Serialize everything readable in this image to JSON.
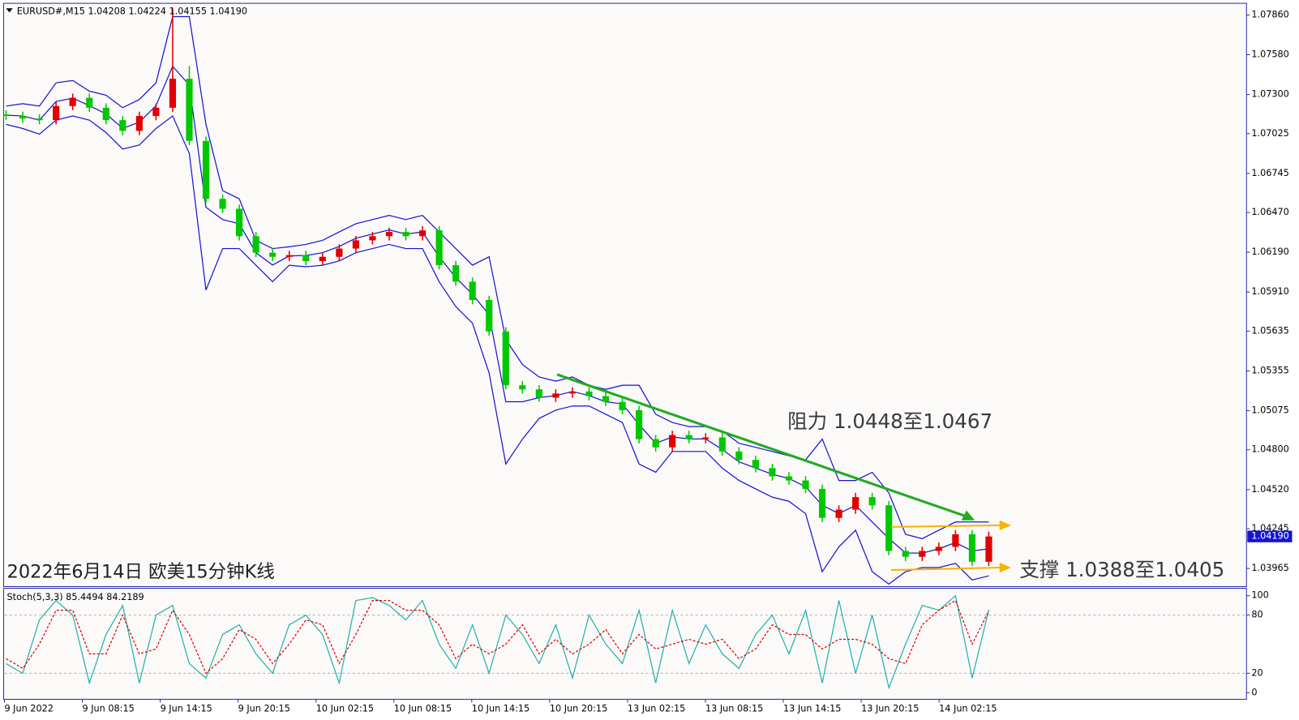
{
  "chart_data": [
    {
      "type": "candlestick",
      "title": "EURUSD#,M15  1.04208 1.04224 1.04155 1.04190",
      "annotations": [
        "阻力 1.0448至1.0467",
        "支撑 1.0388至1.0405",
        "2022年6月14日 欧美15分钟K线"
      ],
      "current_price": {
        "value": 1.0419,
        "label": "1.04190"
      },
      "time_labels": [
        "9 Jun 2022",
        "9 Jun 08:15",
        "9 Jun 14:15",
        "9 Jun 20:15",
        "10 Jun 02:15",
        "10 Jun 08:15",
        "10 Jun 14:15",
        "10 Jun 20:15",
        "13 Jun 02:15",
        "13 Jun 08:15",
        "13 Jun 14:15",
        "13 Jun 20:15",
        "14 Jun 02:15"
      ],
      "up_color": "#e00000",
      "down_color": "#00c800",
      "open": [
        1.0716,
        1.07149,
        1.07131,
        1.0712,
        1.07219,
        1.07277,
        1.07207,
        1.0712,
        1.07044,
        1.07149,
        1.07207,
        1.07411,
        1.06974,
        1.06566,
        1.06496,
        1.06303,
        1.06187,
        1.06158,
        1.0617,
        1.06128,
        1.06158,
        1.06216,
        1.06274,
        1.06303,
        1.06333,
        1.06303,
        1.06344,
        1.06099,
        1.05983,
        1.05854,
        1.05633,
        1.05254,
        1.05225,
        1.05167,
        1.05196,
        1.0521,
        1.05178,
        1.05137,
        1.05079,
        1.04875,
        1.04817,
        1.04904,
        1.04875,
        1.04887,
        1.04788,
        1.04729,
        1.04671,
        1.04613,
        1.04584,
        1.04525,
        1.04321,
        1.04379,
        1.04467,
        1.04409,
        1.04088,
        1.04047,
        1.04088,
        1.04117,
        1.04205,
        1.04012
      ],
      "high": [
        1.0719,
        1.07179,
        1.07161,
        1.07249,
        1.07307,
        1.07307,
        1.07237,
        1.0715,
        1.07179,
        1.07237,
        1.07907,
        1.075,
        1.07004,
        1.06596,
        1.06526,
        1.06333,
        1.06217,
        1.062,
        1.062,
        1.06188,
        1.06246,
        1.06304,
        1.06333,
        1.06363,
        1.06363,
        1.06374,
        1.06374,
        1.06129,
        1.06013,
        1.05884,
        1.05663,
        1.05284,
        1.05255,
        1.05226,
        1.0524,
        1.0524,
        1.05208,
        1.05167,
        1.05109,
        1.04905,
        1.04934,
        1.04934,
        1.04917,
        1.04917,
        1.04818,
        1.04759,
        1.04701,
        1.04643,
        1.04614,
        1.04555,
        1.04409,
        1.04497,
        1.04497,
        1.04439,
        1.04118,
        1.04118,
        1.04147,
        1.04235,
        1.04235,
        1.04224
      ],
      "low": [
        1.07119,
        1.07101,
        1.0709,
        1.0709,
        1.07189,
        1.07177,
        1.0709,
        1.07014,
        1.07014,
        1.07119,
        1.07177,
        1.06944,
        1.06536,
        1.06466,
        1.06273,
        1.06157,
        1.06128,
        1.06128,
        1.06098,
        1.06098,
        1.06128,
        1.06186,
        1.06244,
        1.06273,
        1.06273,
        1.06273,
        1.06069,
        1.05953,
        1.05824,
        1.05603,
        1.05224,
        1.05195,
        1.05137,
        1.05137,
        1.05166,
        1.05148,
        1.05107,
        1.05049,
        1.04845,
        1.04787,
        1.04787,
        1.04845,
        1.04845,
        1.04758,
        1.04699,
        1.04641,
        1.04583,
        1.04554,
        1.04495,
        1.04291,
        1.04291,
        1.04349,
        1.04379,
        1.04058,
        1.04017,
        1.04017,
        1.04058,
        1.04087,
        1.03982,
        1.03982
      ],
      "close": [
        1.07149,
        1.07131,
        1.0712,
        1.07219,
        1.07277,
        1.07207,
        1.0712,
        1.07044,
        1.07149,
        1.07207,
        1.07411,
        1.06974,
        1.06566,
        1.06496,
        1.06303,
        1.06187,
        1.06158,
        1.0617,
        1.06128,
        1.06158,
        1.06216,
        1.06274,
        1.06303,
        1.06333,
        1.06303,
        1.06344,
        1.06099,
        1.05983,
        1.05854,
        1.05633,
        1.05254,
        1.05225,
        1.05167,
        1.05196,
        1.0521,
        1.05178,
        1.05137,
        1.05079,
        1.04875,
        1.04817,
        1.04904,
        1.04875,
        1.04887,
        1.04788,
        1.04729,
        1.04671,
        1.04613,
        1.04584,
        1.04525,
        1.04321,
        1.04379,
        1.04467,
        1.04409,
        1.04088,
        1.04047,
        1.04088,
        1.04117,
        1.04205,
        1.04012,
        1.0419
      ],
      "series": [
        {
          "color": "#1414d2",
          "values": [
            1.07219,
            1.07236,
            1.07219,
            1.07382,
            1.07399,
            1.07324,
            1.07295,
            1.07207,
            1.07265,
            1.07382,
            1.07848,
            1.07848,
            1.0709,
            1.06624,
            1.06566,
            1.06274,
            1.06216,
            1.06228,
            1.06245,
            1.06274,
            1.06333,
            1.06391,
            1.0642,
            1.06449,
            1.0642,
            1.06449,
            1.06333,
            1.06216,
            1.06099,
            1.06158,
            1.05575,
            1.054,
            1.05312,
            1.05283,
            1.05312,
            1.05254,
            1.05225,
            1.05254,
            1.05254,
            1.0505,
            1.04992,
            1.04963,
            1.04963,
            1.04933,
            1.04846,
            1.04817,
            1.04788,
            1.04758,
            1.04729,
            1.04875,
            1.04584,
            1.04584,
            1.04642,
            1.04496,
            1.04205,
            1.04175,
            1.04234,
            1.04292,
            1.04292,
            1.04292
          ]
        },
        {
          "color": "#1414d2",
          "values": [
            1.07155,
            1.07149,
            1.0712,
            1.07251,
            1.07274,
            1.07222,
            1.07164,
            1.07062,
            1.07105,
            1.07222,
            1.07499,
            1.07367,
            1.06507,
            1.0642,
            1.06391,
            1.06187,
            1.061,
            1.06164,
            1.06167,
            1.06187,
            1.06231,
            1.06289,
            1.06318,
            1.06347,
            1.06318,
            1.06333,
            1.06158,
            1.06012,
            1.05895,
            1.0575,
            1.05138,
            1.05138,
            1.05167,
            1.05181,
            1.0521,
            1.05181,
            1.05138,
            1.05123,
            1.04977,
            1.04846,
            1.0489,
            1.04876,
            1.04876,
            1.04802,
            1.04715,
            1.04671,
            1.04628,
            1.04598,
            1.0454,
            1.04409,
            1.04351,
            1.04409,
            1.04292,
            1.04176,
            1.04074,
            1.04073,
            1.04103,
            1.04147,
            1.04088,
            1.04103
          ]
        },
        {
          "color": "#1414d2",
          "values": [
            1.0709,
            1.07061,
            1.07021,
            1.0712,
            1.07149,
            1.0712,
            1.07032,
            1.06916,
            1.06945,
            1.07061,
            1.07149,
            1.06886,
            1.05924,
            1.06216,
            1.06216,
            1.06099,
            1.05983,
            1.06099,
            1.06088,
            1.06099,
            1.06129,
            1.06187,
            1.06216,
            1.06245,
            1.06216,
            1.06216,
            1.05983,
            1.05808,
            1.05691,
            1.05341,
            1.047,
            1.04875,
            1.05021,
            1.05079,
            1.05108,
            1.05108,
            1.0505,
            1.04992,
            1.047,
            1.04642,
            1.04788,
            1.04788,
            1.04788,
            1.04671,
            1.04584,
            1.04525,
            1.04467,
            1.04438,
            1.0435,
            1.03942,
            1.04117,
            1.04234,
            1.03942,
            1.03855,
            1.03942,
            1.03971,
            1.03971,
            1.04001,
            1.03884,
            1.03913
          ]
        }
      ],
      "ylim": [
        1.03843,
        1.07936
      ],
      "yticks": [
        {
          "value": 1.0786,
          "label": "1.07860"
        },
        {
          "value": 1.0758,
          "label": "1.07580"
        },
        {
          "value": 1.073,
          "label": "1.07300"
        },
        {
          "value": 1.07025,
          "label": "1.07025"
        },
        {
          "value": 1.06745,
          "label": "1.06745"
        },
        {
          "value": 1.0647,
          "label": "1.06470"
        },
        {
          "value": 1.0619,
          "label": "1.06190"
        },
        {
          "value": 1.0591,
          "label": "1.05910"
        },
        {
          "value": 1.05635,
          "label": "1.05635"
        },
        {
          "value": 1.05355,
          "label": "1.05355"
        },
        {
          "value": 1.05075,
          "label": "1.05075"
        },
        {
          "value": 1.048,
          "label": "1.04800"
        },
        {
          "value": 1.0452,
          "label": "1.04520"
        },
        {
          "value": 1.04245,
          "label": "1.04245"
        },
        {
          "value": 1.03965,
          "label": "1.03965"
        }
      ]
    },
    {
      "type": "line",
      "title": "Stoch(5,3,3) 85.4494 84.2189",
      "series": [
        {
          "color": "#20b2aa",
          "values": [
            30,
            20,
            75,
            95,
            80,
            10,
            60,
            90,
            10,
            80,
            90,
            30,
            15,
            60,
            70,
            40,
            20,
            70,
            80,
            60,
            10,
            95,
            98,
            90,
            75,
            95,
            50,
            25,
            70,
            20,
            80,
            60,
            30,
            70,
            15,
            80,
            50,
            30,
            85,
            10,
            85,
            30,
            70,
            40,
            25,
            60,
            80,
            40,
            85,
            10,
            95,
            20,
            80,
            5,
            50,
            90,
            85,
            100,
            15,
            85.4494
          ]
        },
        {
          "color": "#e00000",
          "dashed": true,
          "values": [
            35,
            25,
            50,
            85,
            85,
            40,
            40,
            80,
            40,
            45,
            85,
            60,
            20,
            35,
            65,
            55,
            30,
            50,
            75,
            70,
            30,
            60,
            95,
            95,
            85,
            85,
            70,
            35,
            50,
            40,
            50,
            70,
            40,
            55,
            40,
            50,
            65,
            40,
            60,
            45,
            50,
            55,
            50,
            55,
            35,
            45,
            70,
            60,
            60,
            45,
            55,
            55,
            50,
            35,
            30,
            70,
            85,
            95,
            50,
            84.2189
          ]
        }
      ],
      "ylim": [
        -6,
        106.8
      ],
      "yticks": [
        0,
        20,
        80,
        100
      ],
      "level_lines": [
        20,
        80
      ]
    }
  ]
}
